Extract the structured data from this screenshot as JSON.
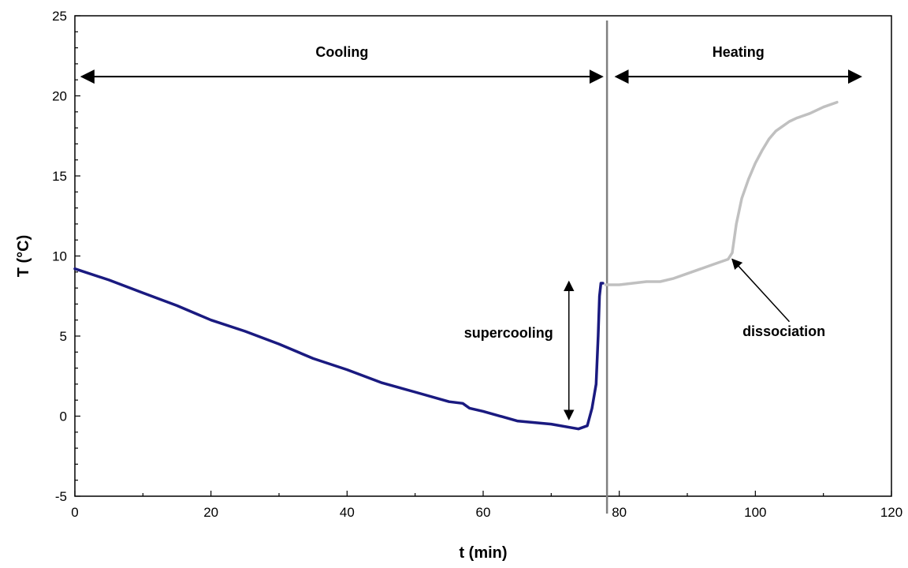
{
  "chart_data": {
    "type": "line",
    "title": "",
    "xlabel": "t (min)",
    "ylabel": "T (°C)",
    "xlim": [
      0,
      120
    ],
    "ylim": [
      -5,
      25
    ],
    "xticks": [
      0,
      20,
      40,
      60,
      80,
      100,
      120
    ],
    "yticks": [
      -5,
      0,
      5,
      10,
      15,
      20,
      25
    ],
    "grid": false,
    "legend": "none",
    "series": [
      {
        "color": "#1a1a80",
        "x": [
          0,
          5,
          10,
          15,
          20,
          25,
          30,
          35,
          40,
          45,
          50,
          55,
          57,
          58,
          60,
          65,
          70,
          74,
          75.3,
          76,
          76.6,
          76.9,
          77.1,
          77.3,
          77.6
        ],
        "y": [
          9.2,
          8.5,
          7.7,
          6.9,
          6.0,
          5.3,
          4.5,
          3.6,
          2.9,
          2.1,
          1.5,
          0.9,
          0.8,
          0.5,
          0.3,
          -0.3,
          -0.5,
          -0.8,
          -0.6,
          0.5,
          2.0,
          5.0,
          7.5,
          8.3,
          8.3
        ]
      },
      {
        "color": "#c0c0c0",
        "x": [
          78,
          80,
          82,
          84,
          86,
          88,
          90,
          92,
          94,
          96,
          96.6,
          97.2,
          98,
          99,
          100,
          101,
          102,
          103,
          104,
          105,
          106,
          108,
          110,
          112
        ],
        "y": [
          8.2,
          8.2,
          8.3,
          8.4,
          8.4,
          8.6,
          8.9,
          9.2,
          9.5,
          9.8,
          10.2,
          12.0,
          13.6,
          14.8,
          15.8,
          16.6,
          17.3,
          17.8,
          18.1,
          18.4,
          18.6,
          18.9,
          19.3,
          19.6
        ]
      }
    ],
    "annotations": {
      "cooling": {
        "label": "Cooling",
        "x_start": 1,
        "x_end": 77.5,
        "y": 21.2
      },
      "heating": {
        "label": "Heating",
        "x_start": 79.5,
        "x_end": 115.5,
        "y": 21.2
      },
      "supercooling": {
        "label": "supercooling",
        "x": 72.6,
        "y_start": -0.2,
        "y_end": 8.4
      },
      "dissociation": {
        "label": "dissociation",
        "arrow_from": [
          105,
          5.9
        ],
        "arrow_to": [
          96.6,
          9.8
        ]
      },
      "divider_x": 78.2
    }
  }
}
